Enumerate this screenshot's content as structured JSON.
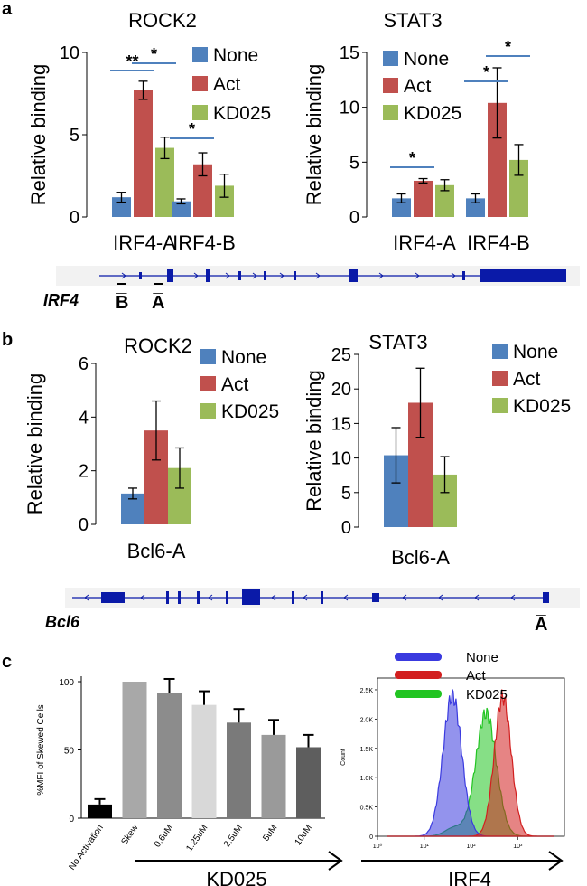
{
  "panels": {
    "a": "a",
    "b": "b",
    "c": "c"
  },
  "colors": {
    "none": "#4f81bd",
    "act": "#c0504d",
    "kd025": "#9bbb59",
    "track": "#0a1aa8",
    "hist_none": "#3a3adf",
    "hist_act": "#d21f1f",
    "hist_kd025": "#22c422"
  },
  "legend_labels": [
    "None",
    "Act",
    "KD025"
  ],
  "chart_data": [
    {
      "id": "a-rock2",
      "type": "bar",
      "title": "ROCK2",
      "ylabel": "Relative binding",
      "ylim": [
        0,
        10
      ],
      "yticks": [
        0,
        5,
        10
      ],
      "categories": [
        "IRF4-A",
        "IRF4-B"
      ],
      "series": [
        {
          "name": "None",
          "values": [
            1.2,
            0.95
          ],
          "errors": [
            0.3,
            0.15
          ]
        },
        {
          "name": "Act",
          "values": [
            7.7,
            3.2
          ],
          "errors": [
            0.55,
            0.7
          ]
        },
        {
          "name": "KD025",
          "values": [
            4.2,
            1.9
          ],
          "errors": [
            0.65,
            0.7
          ]
        }
      ],
      "significance": [
        {
          "label": "**",
          "category": 0,
          "from": "None",
          "to": "Act"
        },
        {
          "label": "*",
          "category": 0,
          "from": "Act",
          "to": "KD025"
        },
        {
          "label": "*",
          "category": 1,
          "from": "None",
          "to": "Act"
        }
      ]
    },
    {
      "id": "a-stat3",
      "type": "bar",
      "title": "STAT3",
      "ylabel": "Relative binding",
      "ylim": [
        0,
        15
      ],
      "yticks": [
        0,
        5,
        10,
        15
      ],
      "categories": [
        "IRF4-A",
        "IRF4-B"
      ],
      "series": [
        {
          "name": "None",
          "values": [
            1.7,
            1.7
          ],
          "errors": [
            0.4,
            0.4
          ]
        },
        {
          "name": "Act",
          "values": [
            3.3,
            10.4
          ],
          "errors": [
            0.2,
            3.2
          ]
        },
        {
          "name": "KD025",
          "values": [
            2.9,
            5.2
          ],
          "errors": [
            0.5,
            1.4
          ]
        }
      ],
      "significance": [
        {
          "label": "*",
          "category": 0,
          "from": "None",
          "to": "Act"
        },
        {
          "label": "*",
          "category": 1,
          "from": "None",
          "to": "Act"
        },
        {
          "label": "*",
          "category": 1,
          "from": "Act",
          "to": "KD025"
        }
      ]
    },
    {
      "id": "b-rock2",
      "type": "bar",
      "title": "ROCK2",
      "ylabel": "Relative binding",
      "ylim": [
        0,
        6
      ],
      "yticks": [
        0,
        2,
        4,
        6
      ],
      "categories": [
        "Bcl6-A"
      ],
      "series": [
        {
          "name": "None",
          "values": [
            1.15
          ],
          "errors": [
            0.2
          ]
        },
        {
          "name": "Act",
          "values": [
            3.5
          ],
          "errors": [
            1.1
          ]
        },
        {
          "name": "KD025",
          "values": [
            2.1
          ],
          "errors": [
            0.75
          ]
        }
      ],
      "significance": []
    },
    {
      "id": "b-stat3",
      "type": "bar",
      "title": "STAT3",
      "ylabel": "Relative binding",
      "ylim": [
        0,
        25
      ],
      "yticks": [
        0,
        5,
        10,
        15,
        20,
        25
      ],
      "categories": [
        "Bcl6-A"
      ],
      "series": [
        {
          "name": "None",
          "values": [
            10.4
          ],
          "errors": [
            4.0
          ]
        },
        {
          "name": "Act",
          "values": [
            18.0
          ],
          "errors": [
            5.0
          ]
        },
        {
          "name": "KD025",
          "values": [
            7.6
          ],
          "errors": [
            2.6
          ]
        }
      ],
      "significance": []
    },
    {
      "id": "c-mfi",
      "type": "bar",
      "ylabel": "%MFI of Skewed Cells",
      "ylim": [
        0,
        100
      ],
      "yticks": [
        0,
        50,
        100
      ],
      "categories": [
        "No Activation",
        "Skew",
        "0.6uM",
        "1.25uM",
        "2.5uM",
        "5uM",
        "10uM"
      ],
      "values": [
        10,
        100,
        92,
        83,
        70,
        61,
        52
      ],
      "errors": [
        4,
        0,
        10,
        10,
        10,
        11,
        9
      ],
      "bar_colors": [
        "#000000",
        "#a8a8a8",
        "#8c8c8c",
        "#d8d8d8",
        "#7a7a7a",
        "#9a9a9a",
        "#5e5e5e"
      ],
      "xlabel": "KD025"
    },
    {
      "id": "c-hist",
      "type": "area",
      "title": "",
      "xlabel": "IRF4",
      "ylabel": "Count",
      "xscale": "log",
      "xlim": [
        1,
        10000
      ],
      "ylim": [
        0,
        2700
      ],
      "yticks": [
        0,
        500,
        1000,
        1500,
        2000,
        2500
      ],
      "ytick_labels": [
        "0",
        "0.5K",
        "1.0K",
        "1.5K",
        "2.0K",
        "2.5K"
      ],
      "xticks": [
        1,
        10,
        100,
        1000
      ],
      "xtick_labels": [
        "10⁰",
        "10¹",
        "10²",
        "10³"
      ],
      "series": [
        {
          "name": "None",
          "peak_x": 40,
          "peak_y": 2400,
          "width": 0.2
        },
        {
          "name": "Act",
          "peak_x": 480,
          "peak_y": 2380,
          "width": 0.18
        },
        {
          "name": "KD025",
          "peak_x": 210,
          "peak_y": 2100,
          "width": 0.22
        }
      ]
    }
  ],
  "tracks": {
    "irf4": {
      "gene": "IRF4",
      "sites": [
        "B̅",
        "A̅"
      ]
    },
    "bcl6": {
      "gene": "Bcl6",
      "sites": [
        "A̅"
      ]
    }
  }
}
